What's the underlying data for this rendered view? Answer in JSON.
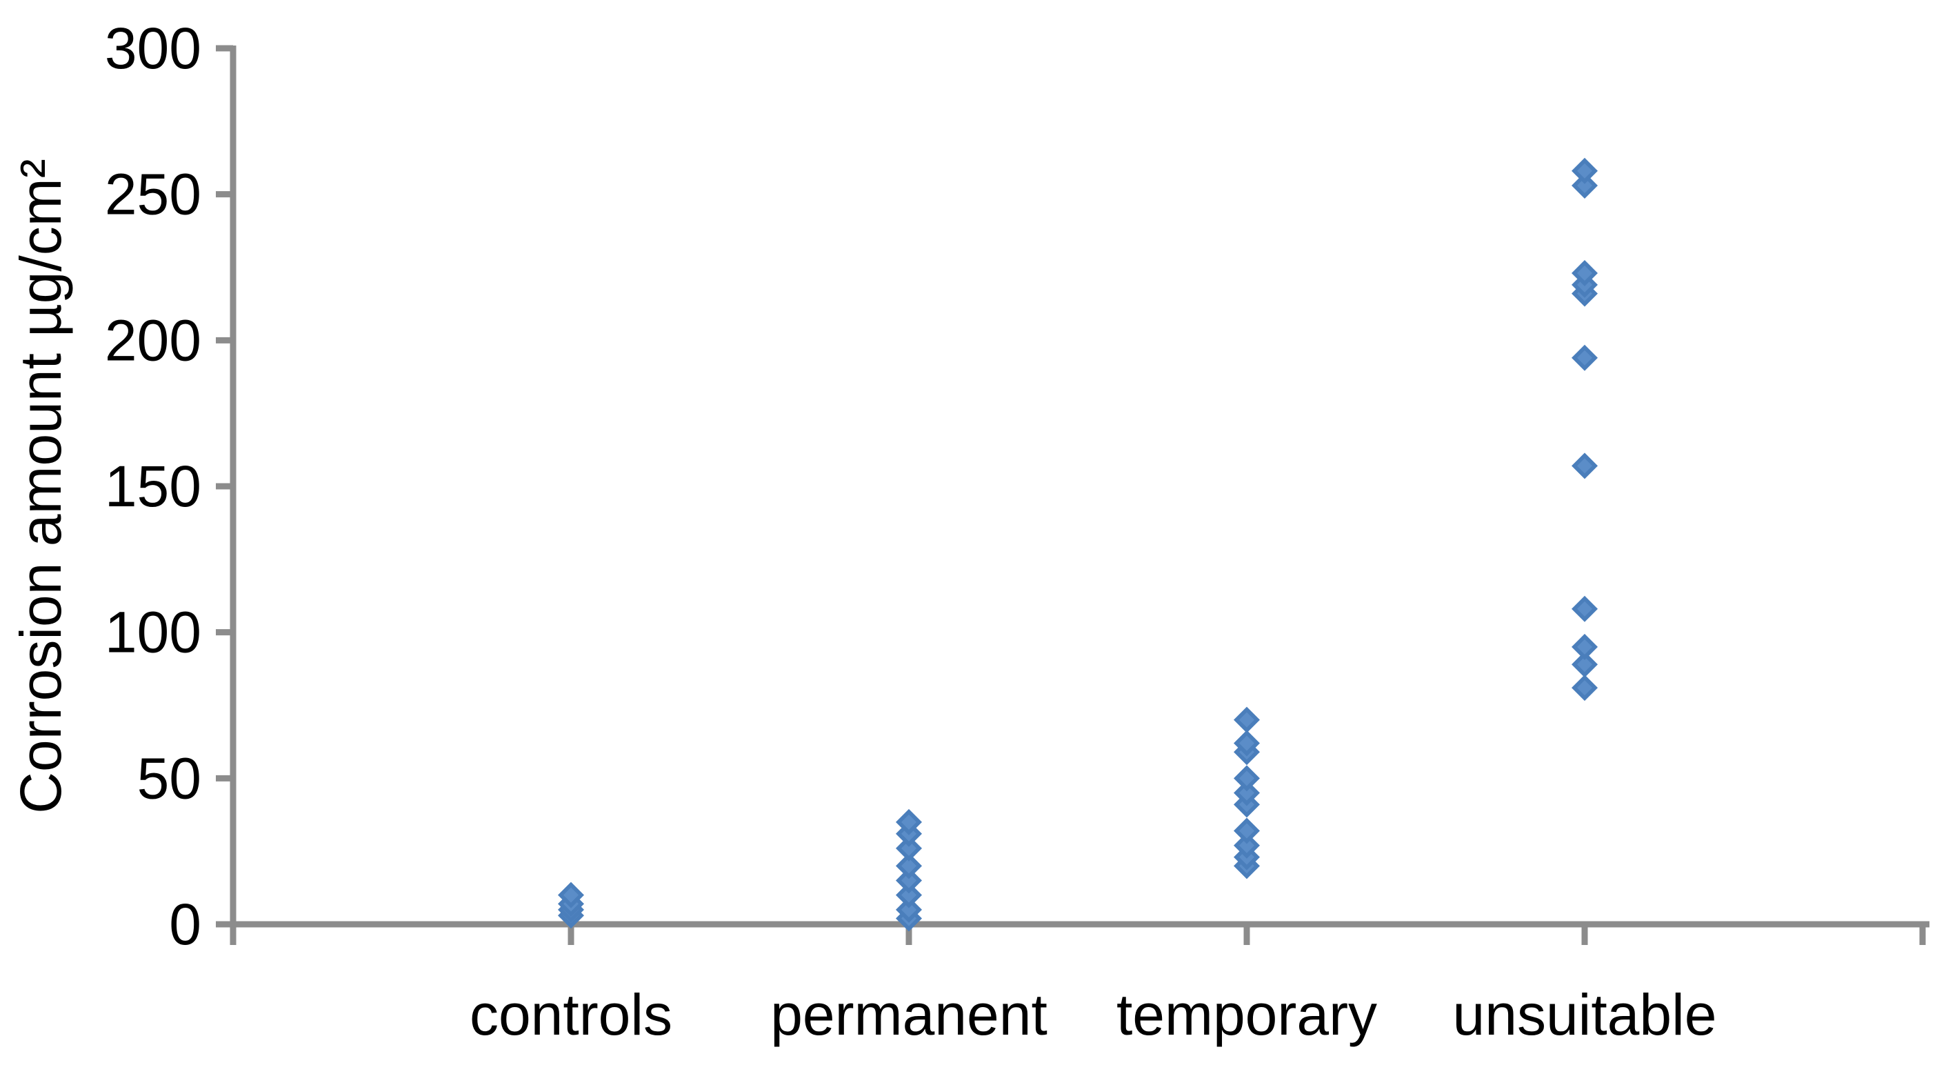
{
  "chart_data": {
    "type": "scatter",
    "title": "",
    "xlabel": "",
    "ylabel": "Corrosion amount µg/cm²",
    "categories": [
      "controls",
      "permanent",
      "temporary",
      "unsuitable"
    ],
    "series": [
      {
        "name": "controls",
        "values": [
          3,
          5,
          7,
          10
        ]
      },
      {
        "name": "permanent",
        "values": [
          2,
          5,
          10,
          15,
          20,
          26,
          31,
          35
        ]
      },
      {
        "name": "temporary",
        "values": [
          20,
          23,
          27,
          32,
          41,
          45,
          50,
          59,
          62,
          70
        ]
      },
      {
        "name": "unsuitable",
        "values": [
          81,
          89,
          95,
          108,
          157,
          194,
          216,
          219,
          223,
          253,
          258
        ]
      }
    ],
    "ylim": [
      0,
      300
    ],
    "y_tick_interval": 50,
    "y_tick_labels": [
      "0",
      "50",
      "100",
      "150",
      "200",
      "250",
      "300"
    ],
    "grid": false,
    "legend_position": "none",
    "marker_shape": "diamond",
    "marker_color": "#4A7EBB",
    "marker_highlight_color": "#5B8DC8",
    "axis_color": "#8C8C8C",
    "text_color": "#000000"
  }
}
